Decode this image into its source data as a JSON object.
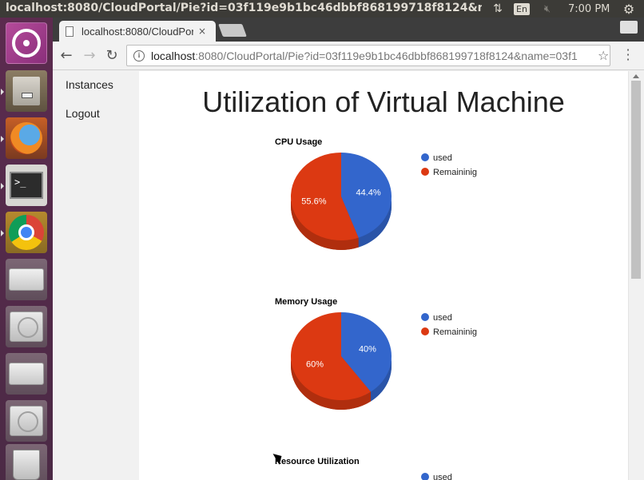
{
  "system": {
    "window_title": "localhost:8080/CloudPortal/Pie?id=03f119e9b1bc46dbbf868199718f8124&name=03f1",
    "updown_icon": "transfer-arrows-icon",
    "language": "En",
    "volume_icon": "volume-muted-icon",
    "clock": "7:00 PM",
    "gear_icon": "gear-icon"
  },
  "launcher": {
    "items": [
      "ubuntu-dash",
      "files",
      "firefox",
      "terminal",
      "chrome",
      "drive",
      "drive",
      "drive",
      "drive",
      "trash"
    ]
  },
  "browser": {
    "tab_title": "localhost:8080/CloudPortal/Pie?id=03f1",
    "tab_close": "×",
    "url_host": "localhost",
    "url_rest": ":8080/CloudPortal/Pie?id=03f119e9b1bc46dbbf868199718f8124&name=03f1",
    "profile": "👤"
  },
  "nav": {
    "instances": "Instances",
    "logout": "Logout"
  },
  "page": {
    "title": "Utilization of Virtual Machine"
  },
  "colors": {
    "used": "#3366cc",
    "remaining": "#dc3912",
    "used_dark": "#2a54a8",
    "remaining_dark": "#b02e0e"
  },
  "chart_data": [
    {
      "type": "pie",
      "title": "CPU Usage",
      "slices": [
        {
          "label": "used",
          "value": 44.4,
          "display": "44.4%"
        },
        {
          "label": "Remaininig",
          "value": 55.6,
          "display": "55.6%"
        }
      ],
      "legend": "right",
      "is3D": true
    },
    {
      "type": "pie",
      "title": "Memory Usage",
      "slices": [
        {
          "label": "used",
          "value": 40,
          "display": "40%"
        },
        {
          "label": "Remaininig",
          "value": 60,
          "display": "60%"
        }
      ],
      "legend": "right",
      "is3D": true
    },
    {
      "type": "pie",
      "title": "Resource Utilization",
      "slices": [
        {
          "label": "used",
          "value": null,
          "display": ""
        }
      ],
      "legend": "right",
      "is3D": true
    }
  ]
}
